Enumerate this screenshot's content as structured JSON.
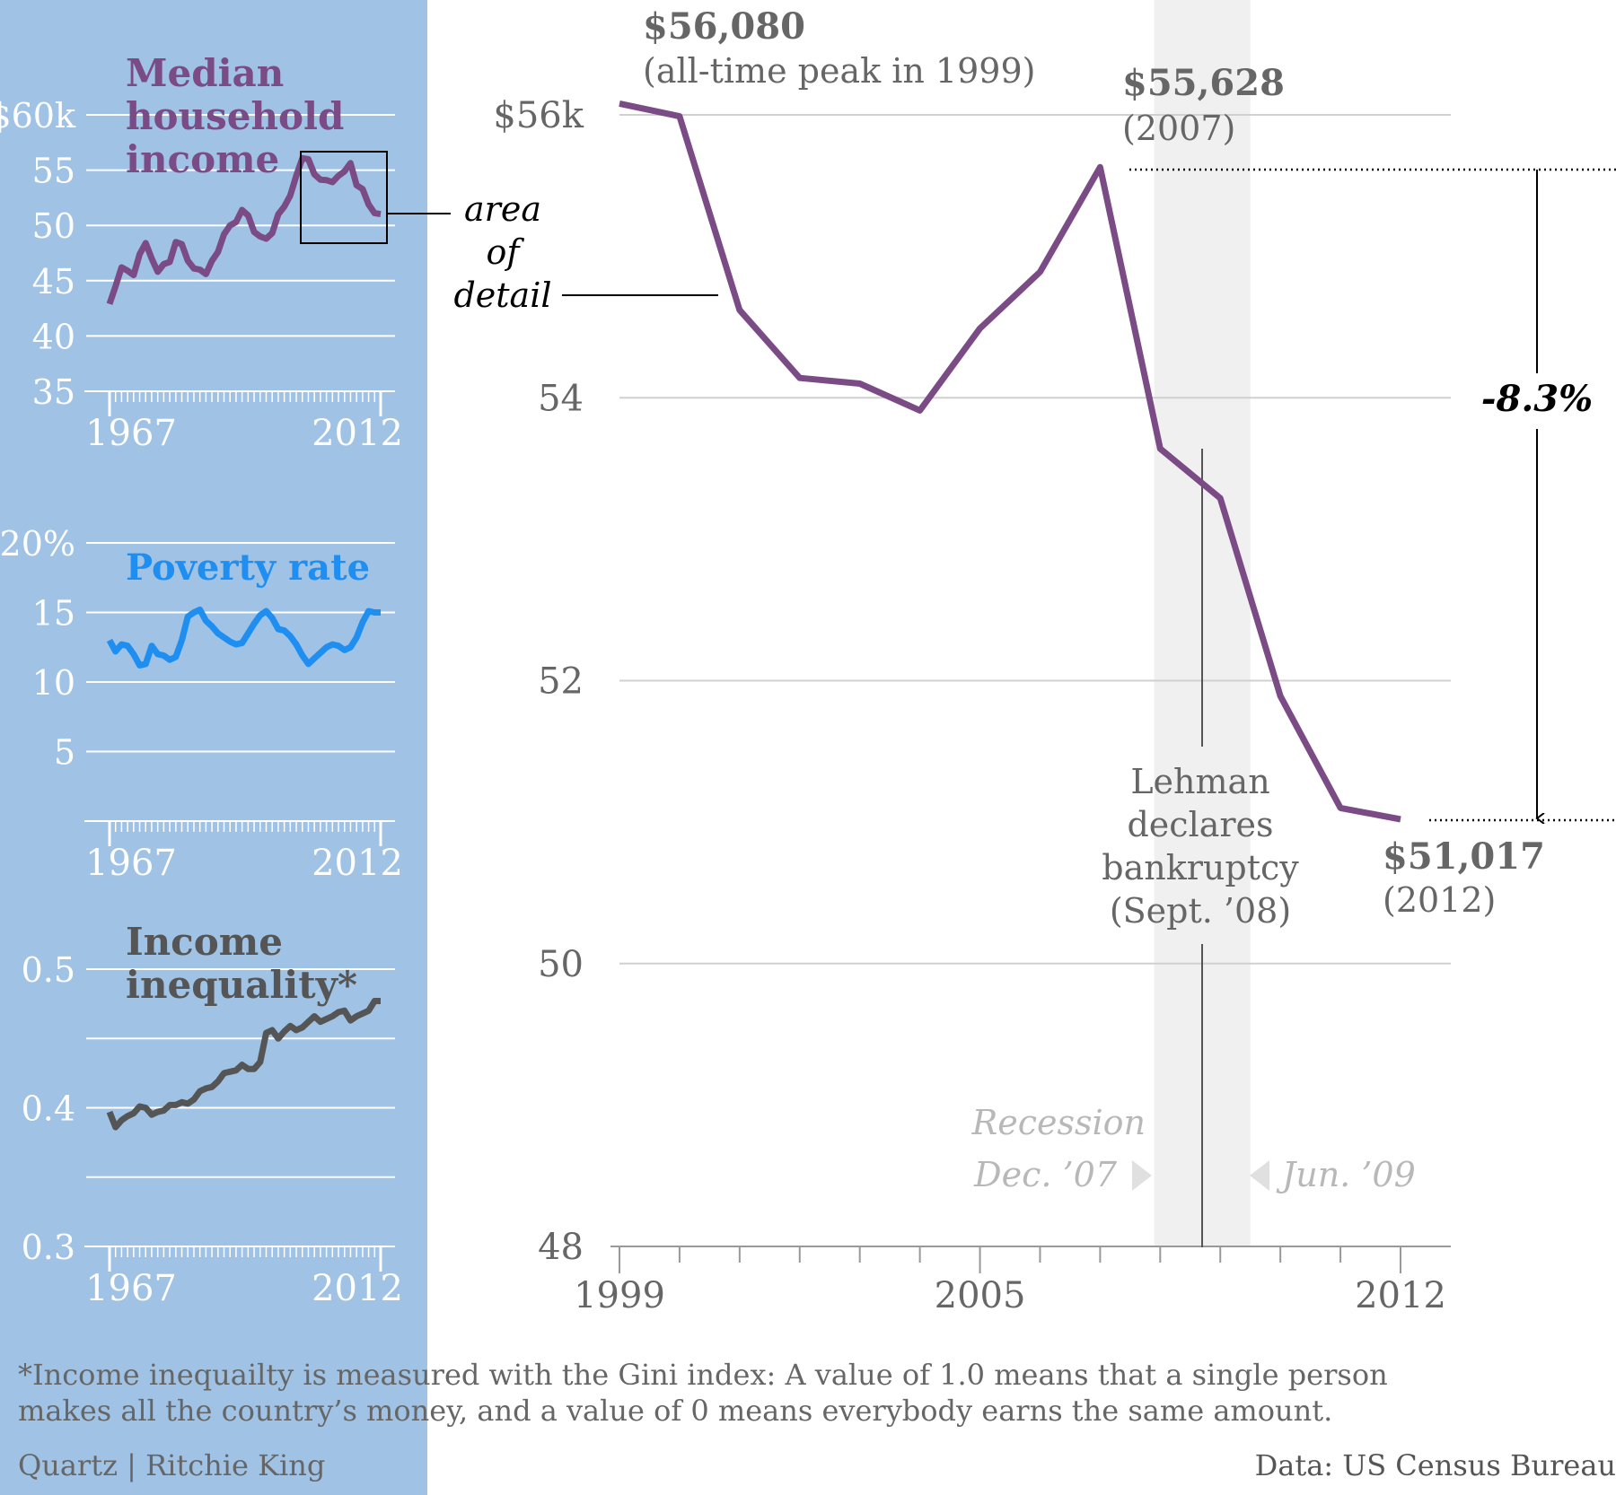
{
  "small_multiples": {
    "x_start_label": "1967",
    "x_end_label": "2012",
    "income": {
      "title": [
        "Median",
        "household",
        "income"
      ],
      "y_ticks": [
        "$60k",
        "55",
        "50",
        "45",
        "40",
        "35"
      ],
      "color": "#7b4b86"
    },
    "poverty": {
      "title": "Poverty rate",
      "y_ticks": [
        "20%",
        "15",
        "10",
        "5"
      ],
      "color": "#1f8ef1"
    },
    "inequality": {
      "title": [
        "Income",
        "inequality*"
      ],
      "y_ticks": [
        "0.5",
        "0.4",
        "0.3"
      ],
      "color": "#555555"
    },
    "detail_label": [
      "area",
      "of",
      "detail"
    ]
  },
  "main": {
    "y_ticks": [
      "$56k",
      "54",
      "52",
      "50",
      "48"
    ],
    "x_ticks": [
      "1999",
      "2005",
      "2012"
    ],
    "peak": {
      "value": "$56,080",
      "note": "(all-time peak in 1999)"
    },
    "peak2007": {
      "value": "$55,628",
      "note": "(2007)"
    },
    "end2012": {
      "value": "$51,017",
      "note": "(2012)"
    },
    "change": "-8.3%",
    "lehman": [
      "Lehman",
      "declares",
      "bankruptcy",
      "(Sept. ’08)"
    ],
    "recession": {
      "title": "Recession",
      "start": "Dec. ’07",
      "end": "Jun. ’09"
    },
    "color": "#7b4b86"
  },
  "footnote": "*Income inequailty is measured with the Gini index: A value of 1.0 means that a single person makes all the country’s money, and a value of 0 means everybody earns the same amount.",
  "credit": "Quartz | Ritchie King",
  "source": "Data: US Census Bureau",
  "chart_data": [
    {
      "type": "line",
      "title": "Median household income",
      "x": [
        1967,
        1968,
        1969,
        1970,
        1971,
        1972,
        1973,
        1974,
        1975,
        1976,
        1977,
        1978,
        1979,
        1980,
        1981,
        1982,
        1983,
        1984,
        1985,
        1986,
        1987,
        1988,
        1989,
        1990,
        1991,
        1992,
        1993,
        1994,
        1995,
        1996,
        1997,
        1998,
        1999,
        2000,
        2001,
        2002,
        2003,
        2004,
        2005,
        2006,
        2007,
        2008,
        2009,
        2010,
        2011,
        2012
      ],
      "values": [
        42.9,
        44.5,
        46.2,
        45.9,
        45.5,
        47.4,
        48.4,
        47.0,
        45.8,
        46.5,
        46.7,
        48.5,
        48.3,
        46.8,
        46.1,
        46.0,
        45.6,
        46.8,
        47.6,
        49.2,
        50.0,
        50.3,
        51.4,
        50.9,
        49.4,
        49.0,
        48.8,
        49.3,
        51.0,
        51.7,
        52.7,
        54.5,
        56.08,
        55.99,
        54.62,
        54.14,
        54.1,
        53.91,
        54.49,
        54.89,
        55.63,
        53.64,
        53.29,
        51.89,
        51.1,
        51.02
      ],
      "ylim": [
        35,
        60
      ],
      "y_ticks": [
        60,
        55,
        50,
        45,
        40,
        35
      ]
    },
    {
      "type": "line",
      "title": "Poverty rate",
      "x": [
        1967,
        1968,
        1969,
        1970,
        1971,
        1972,
        1973,
        1974,
        1975,
        1976,
        1977,
        1978,
        1979,
        1980,
        1981,
        1982,
        1983,
        1984,
        1985,
        1986,
        1987,
        1988,
        1989,
        1990,
        1991,
        1992,
        1993,
        1994,
        1995,
        1996,
        1997,
        1998,
        1999,
        2000,
        2001,
        2002,
        2003,
        2004,
        2005,
        2006,
        2007,
        2008,
        2009,
        2010,
        2011,
        2012
      ],
      "values": [
        13.0,
        12.2,
        12.7,
        12.6,
        12.0,
        11.2,
        11.3,
        12.6,
        12.0,
        11.9,
        11.6,
        11.8,
        13.0,
        14.7,
        15.0,
        15.2,
        14.4,
        14.0,
        13.5,
        13.2,
        12.9,
        12.7,
        12.8,
        13.5,
        14.2,
        14.8,
        15.1,
        14.6,
        13.8,
        13.7,
        13.3,
        12.7,
        11.9,
        11.3,
        11.7,
        12.1,
        12.5,
        12.7,
        12.6,
        12.3,
        12.5,
        13.2,
        14.3,
        15.1,
        15.0,
        15.0
      ],
      "ylim": [
        0,
        20
      ],
      "y_ticks": [
        20,
        15,
        10,
        5
      ]
    },
    {
      "type": "line",
      "title": "Income inequality*",
      "x": [
        1967,
        1968,
        1969,
        1970,
        1971,
        1972,
        1973,
        1974,
        1975,
        1976,
        1977,
        1978,
        1979,
        1980,
        1981,
        1982,
        1983,
        1984,
        1985,
        1986,
        1987,
        1988,
        1989,
        1990,
        1991,
        1992,
        1993,
        1994,
        1995,
        1996,
        1997,
        1998,
        1999,
        2000,
        2001,
        2002,
        2003,
        2004,
        2005,
        2006,
        2007,
        2008,
        2009,
        2010,
        2011,
        2012
      ],
      "values": [
        0.397,
        0.386,
        0.391,
        0.394,
        0.396,
        0.401,
        0.4,
        0.395,
        0.397,
        0.398,
        0.402,
        0.402,
        0.404,
        0.403,
        0.406,
        0.412,
        0.414,
        0.415,
        0.419,
        0.425,
        0.426,
        0.427,
        0.431,
        0.428,
        0.428,
        0.433,
        0.454,
        0.456,
        0.45,
        0.455,
        0.459,
        0.456,
        0.458,
        0.462,
        0.466,
        0.462,
        0.464,
        0.466,
        0.469,
        0.47,
        0.463,
        0.466,
        0.468,
        0.47,
        0.477,
        0.477
      ],
      "ylim": [
        0.3,
        0.5
      ],
      "y_ticks": [
        0.5,
        0.4,
        0.3
      ]
    },
    {
      "type": "line",
      "title": "",
      "x": [
        1999,
        2000,
        2001,
        2002,
        2003,
        2004,
        2005,
        2006,
        2007,
        2008,
        2009,
        2010,
        2011,
        2012
      ],
      "values": [
        56.08,
        55.99,
        54.62,
        54.14,
        54.1,
        53.91,
        54.49,
        54.89,
        55.63,
        53.64,
        53.29,
        51.89,
        51.1,
        51.02
      ],
      "ylim": [
        48,
        56
      ],
      "y_ticks": [
        56,
        54,
        52,
        50,
        48
      ],
      "recession": {
        "start": 2007.9,
        "end": 2009.5
      },
      "annotations": [
        "$56,080 (all-time peak in 1999)",
        "$55,628 (2007)",
        "$51,017 (2012)",
        "-8.3%",
        "Lehman declares bankruptcy (Sept. ’08)"
      ]
    }
  ]
}
